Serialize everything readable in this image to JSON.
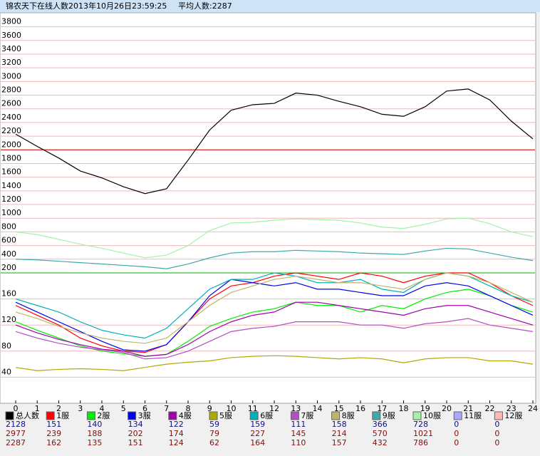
{
  "chart_data": {
    "type": "line",
    "title": "锦农天下在线人数2013年10月26日23:59:25",
    "subtitle": "平均人数:2287",
    "x": [
      0,
      1,
      2,
      3,
      4,
      5,
      6,
      7,
      8,
      9,
      10,
      11,
      12,
      13,
      14,
      15,
      16,
      17,
      18,
      19,
      20,
      21,
      22,
      23,
      24
    ],
    "xlim": [
      0,
      24
    ],
    "xticks": [
      0,
      1,
      2,
      3,
      4,
      5,
      6,
      7,
      8,
      9,
      10,
      11,
      12,
      13,
      14,
      15,
      16,
      17,
      18,
      19,
      20,
      21,
      22,
      23,
      24
    ],
    "ylim": [
      0,
      3900
    ],
    "y_break": 200,
    "yticks": [
      40,
      80,
      120,
      160,
      200,
      400,
      600,
      800,
      1000,
      1200,
      1400,
      1600,
      1800,
      2000,
      2200,
      2400,
      2600,
      2800,
      3000,
      3200,
      3400,
      3600,
      3800
    ],
    "grid": true,
    "reference_lines": [
      {
        "value": 2000,
        "color": "#d00000"
      },
      {
        "value": 200,
        "color": "#00b000"
      }
    ],
    "series": [
      {
        "name": "总人数",
        "color": "#000000",
        "current": 2128,
        "max": 2977,
        "average": 2287,
        "values": [
          2230,
          2050,
          1880,
          1690,
          1590,
          1460,
          1360,
          1430,
          1850,
          2290,
          2580,
          2660,
          2680,
          2830,
          2800,
          2710,
          2630,
          2520,
          2490,
          2630,
          2860,
          2890,
          2730,
          2420,
          2160
        ]
      },
      {
        "name": "1服",
        "color": "#ff0000",
        "current": 151,
        "max": 239,
        "average": 162,
        "values": [
          150,
          135,
          120,
          100,
          88,
          80,
          78,
          90,
          125,
          160,
          180,
          185,
          195,
          200,
          195,
          190,
          200,
          195,
          185,
          195,
          200,
          200,
          185,
          165,
          150
        ]
      },
      {
        "name": "2服",
        "color": "#00ee00",
        "current": 140,
        "max": 188,
        "average": 135,
        "values": [
          125,
          112,
          100,
          88,
          80,
          76,
          72,
          75,
          95,
          118,
          130,
          140,
          145,
          155,
          150,
          150,
          140,
          150,
          145,
          160,
          170,
          175,
          165,
          150,
          140
        ]
      },
      {
        "name": "3服",
        "color": "#0000ee",
        "current": 134,
        "max": 202,
        "average": 151,
        "values": [
          155,
          140,
          125,
          110,
          95,
          82,
          80,
          90,
          125,
          165,
          190,
          185,
          180,
          185,
          175,
          175,
          170,
          165,
          165,
          180,
          185,
          180,
          165,
          150,
          135
        ]
      },
      {
        "name": "4服",
        "color": "#a000a8",
        "current": 122,
        "max": 174,
        "average": 124,
        "values": [
          120,
          108,
          98,
          90,
          83,
          80,
          72,
          75,
          90,
          110,
          125,
          135,
          140,
          155,
          155,
          150,
          145,
          140,
          135,
          145,
          150,
          150,
          140,
          130,
          120
        ]
      },
      {
        "name": "5服",
        "color": "#b0a800",
        "current": 59,
        "max": 79,
        "average": 62,
        "values": [
          55,
          50,
          52,
          53,
          52,
          50,
          55,
          60,
          63,
          65,
          70,
          72,
          73,
          72,
          70,
          68,
          70,
          68,
          62,
          68,
          70,
          70,
          65,
          65,
          60
        ]
      },
      {
        "name": "6服",
        "color": "#00b0b8",
        "current": 159,
        "max": 227,
        "average": 164,
        "values": [
          160,
          150,
          140,
          125,
          112,
          105,
          100,
          115,
          145,
          175,
          190,
          190,
          200,
          195,
          185,
          185,
          190,
          175,
          170,
          190,
          200,
          195,
          180,
          165,
          155
        ]
      },
      {
        "name": "7服",
        "color": "#b050c0",
        "current": 111,
        "max": 145,
        "average": 110,
        "values": [
          110,
          100,
          92,
          86,
          82,
          78,
          68,
          70,
          80,
          95,
          110,
          115,
          118,
          125,
          125,
          125,
          120,
          120,
          115,
          122,
          125,
          130,
          120,
          115,
          110
        ]
      },
      {
        "name": "8服",
        "color": "#c0b468",
        "current": 158,
        "max": 214,
        "average": 157,
        "values": [
          140,
          130,
          118,
          108,
          100,
          95,
          92,
          100,
          125,
          150,
          170,
          180,
          190,
          195,
          190,
          185,
          185,
          180,
          175,
          190,
          200,
          195,
          185,
          170,
          155
        ]
      },
      {
        "name": "9服",
        "color": "#40a8a8",
        "current": 366,
        "max": 570,
        "average": 432,
        "values": [
          400,
          390,
          370,
          350,
          330,
          310,
          290,
          260,
          330,
          420,
          490,
          510,
          510,
          530,
          520,
          510,
          490,
          480,
          470,
          520,
          560,
          550,
          490,
          430,
          380
        ]
      },
      {
        "name": "10服",
        "color": "#a8f0a8",
        "current": 728,
        "max": 1021,
        "average": 786,
        "values": [
          800,
          760,
          690,
          620,
          560,
          490,
          420,
          460,
          600,
          820,
          930,
          940,
          970,
          990,
          980,
          970,
          930,
          870,
          850,
          910,
          990,
          1000,
          920,
          800,
          730
        ]
      },
      {
        "name": "11服",
        "color": "#a8a8ff",
        "current": 0,
        "max": 0,
        "average": 0
      },
      {
        "name": "12服",
        "color": "#ffb8b8",
        "current": 0,
        "max": 0,
        "average": 0
      }
    ]
  }
}
